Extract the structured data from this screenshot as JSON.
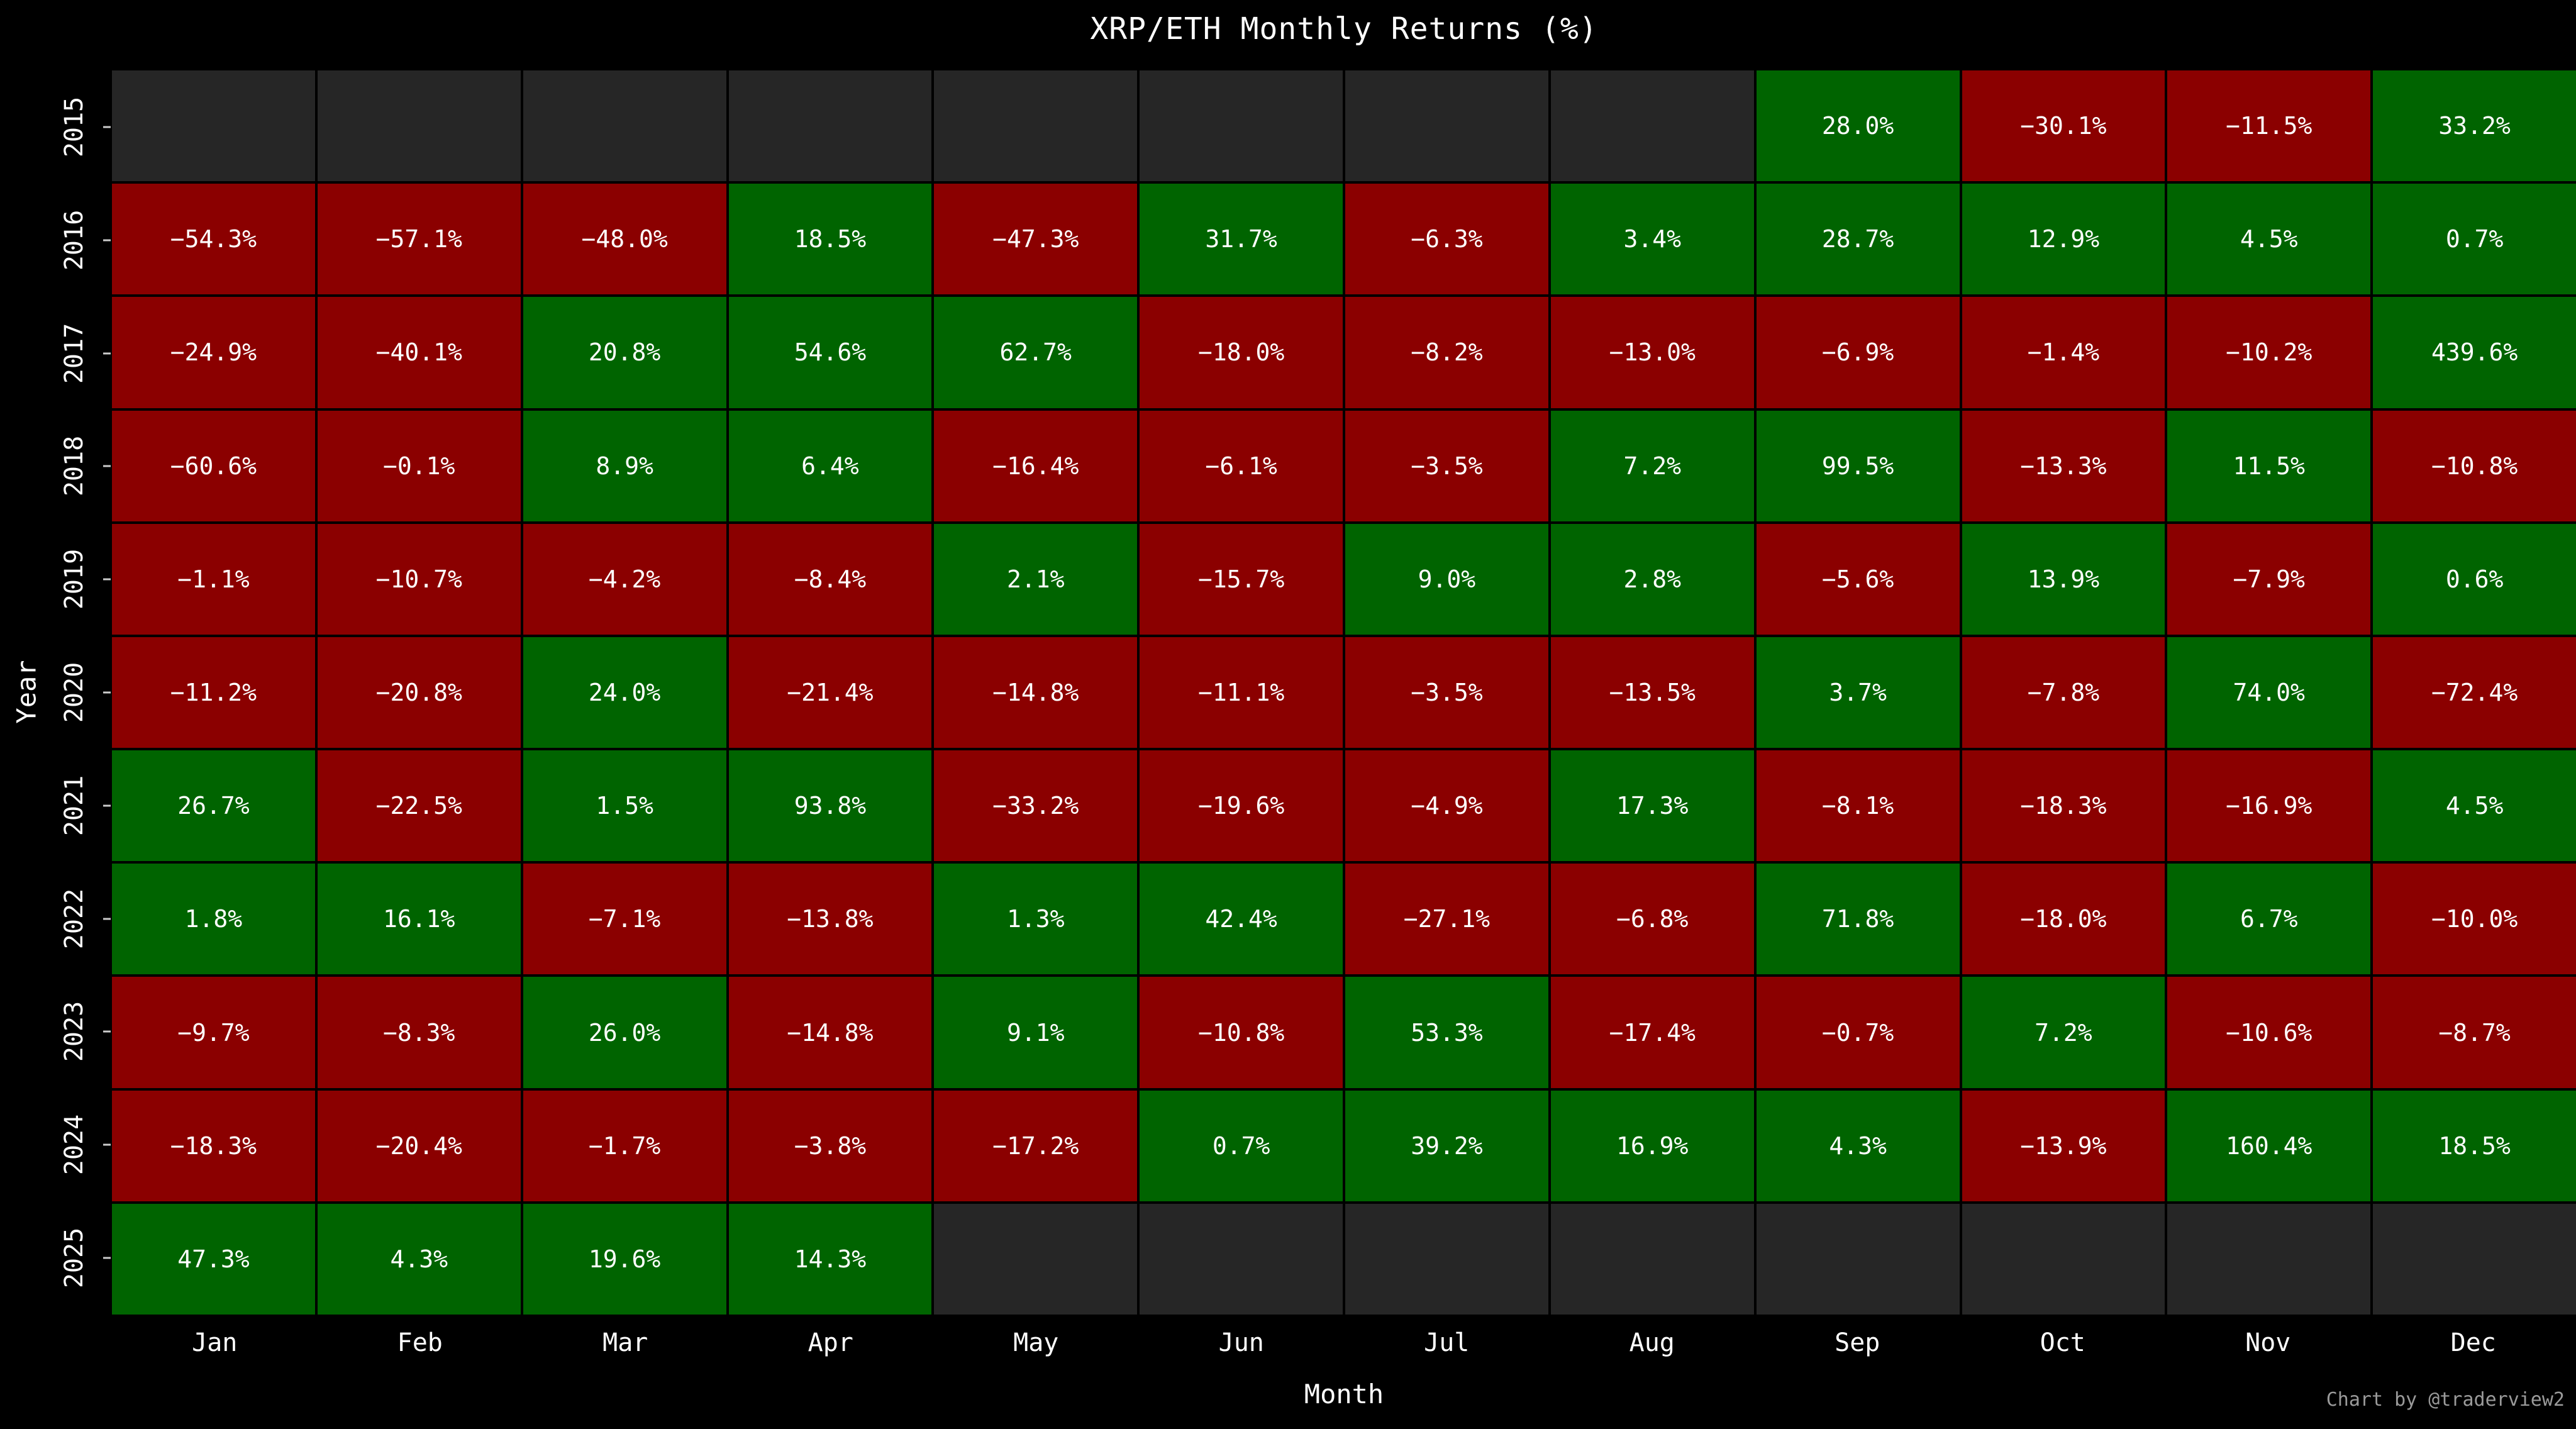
{
  "chart_data": {
    "type": "heatmap",
    "title": "XRP/ETH Monthly Returns (%)",
    "xlabel": "Month",
    "ylabel": "Year",
    "columns": [
      "Jan",
      "Feb",
      "Mar",
      "Apr",
      "May",
      "Jun",
      "Jul",
      "Aug",
      "Sep",
      "Oct",
      "Nov",
      "Dec"
    ],
    "rows": [
      "2015",
      "2016",
      "2017",
      "2018",
      "2019",
      "2020",
      "2021",
      "2022",
      "2023",
      "2024",
      "2025"
    ],
    "values": [
      [
        null,
        null,
        null,
        null,
        null,
        null,
        null,
        null,
        28.0,
        -30.1,
        -11.5,
        33.2
      ],
      [
        -54.3,
        -57.1,
        -48.0,
        18.5,
        -47.3,
        31.7,
        -6.3,
        3.4,
        28.7,
        12.9,
        4.5,
        0.7
      ],
      [
        -24.9,
        -40.1,
        20.8,
        54.6,
        62.7,
        -18.0,
        -8.2,
        -13.0,
        -6.9,
        -1.4,
        -10.2,
        439.6
      ],
      [
        -60.6,
        -0.1,
        8.9,
        6.4,
        -16.4,
        -6.1,
        -3.5,
        7.2,
        99.5,
        -13.3,
        11.5,
        -10.8
      ],
      [
        -1.1,
        -10.7,
        -4.2,
        -8.4,
        2.1,
        -15.7,
        9.0,
        2.8,
        -5.6,
        13.9,
        -7.9,
        0.6
      ],
      [
        -11.2,
        -20.8,
        24.0,
        -21.4,
        -14.8,
        -11.1,
        -3.5,
        -13.5,
        3.7,
        -7.8,
        74.0,
        -72.4
      ],
      [
        26.7,
        -22.5,
        1.5,
        93.8,
        -33.2,
        -19.6,
        -4.9,
        17.3,
        -8.1,
        -18.3,
        -16.9,
        4.5
      ],
      [
        1.8,
        16.1,
        -7.1,
        -13.8,
        1.3,
        42.4,
        -27.1,
        -6.8,
        71.8,
        -18.0,
        6.7,
        -10.0
      ],
      [
        -9.7,
        -8.3,
        26.0,
        -14.8,
        9.1,
        -10.8,
        53.3,
        -17.4,
        -0.7,
        7.2,
        -10.6,
        -8.7
      ],
      [
        -18.3,
        -20.4,
        -1.7,
        -3.8,
        -17.2,
        0.7,
        39.2,
        16.9,
        4.3,
        -13.9,
        160.4,
        18.5
      ],
      [
        47.3,
        4.3,
        19.6,
        14.3,
        null,
        null,
        null,
        null,
        null,
        null,
        null,
        null
      ]
    ],
    "value_suffix": "%",
    "value_decimals": 1,
    "grid": false,
    "legend_position": "none",
    "colors": {
      "positive": "#006400",
      "negative": "#8b0000",
      "empty": "#262626",
      "background": "#000000",
      "text": "#ffffff",
      "muted_text": "#9a9a9a"
    }
  },
  "footer": {
    "credit": "Chart by @traderview2"
  }
}
